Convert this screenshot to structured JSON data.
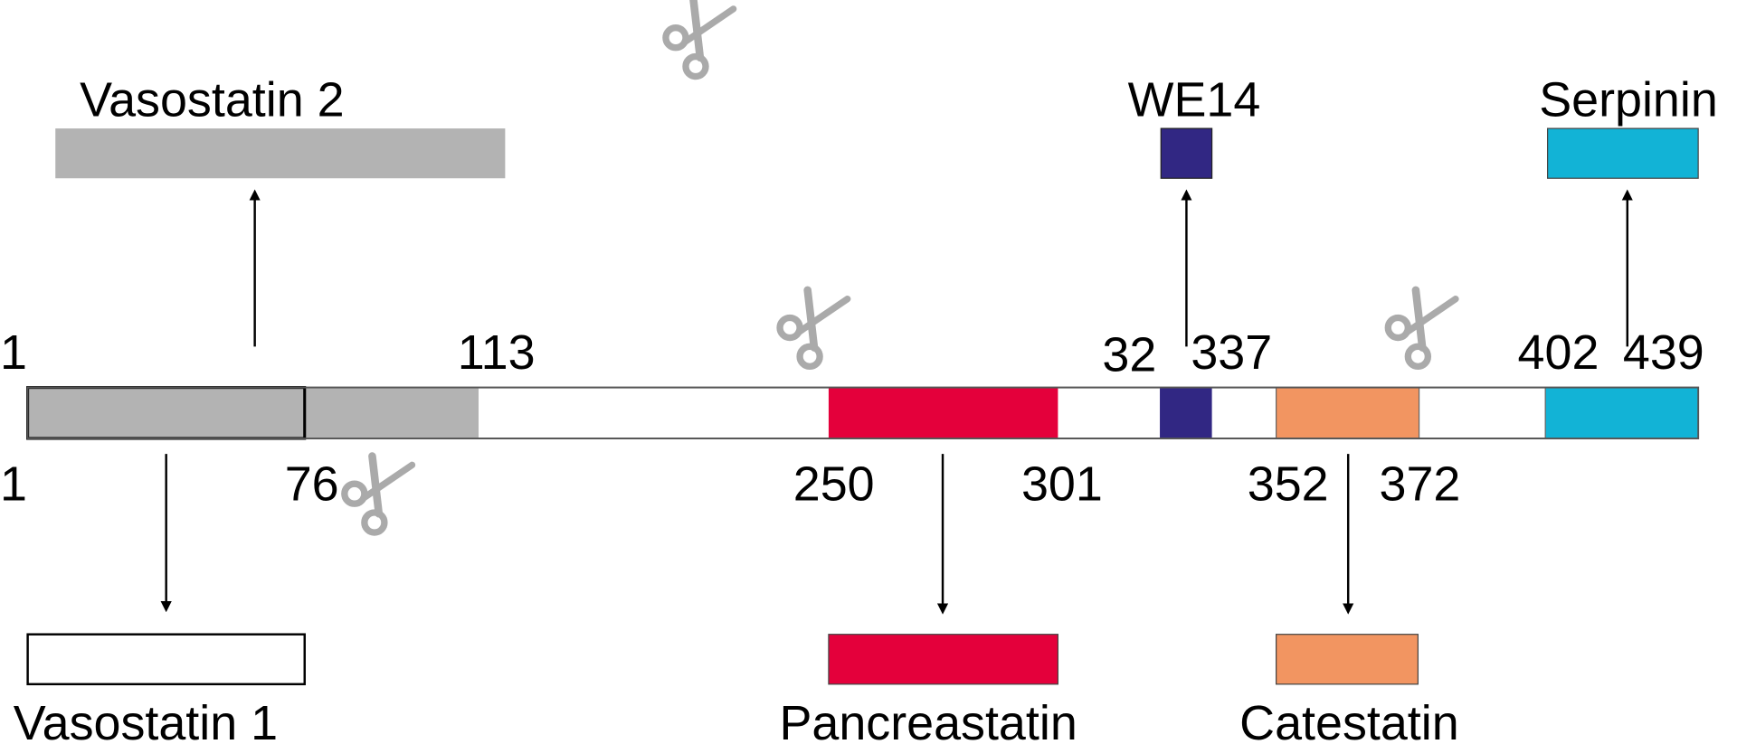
{
  "peptides": [
    {
      "name": "Vasostatin 2"
    },
    {
      "name": "WE14"
    },
    {
      "name": "Serpinin"
    },
    {
      "name": "Vasostatin 1"
    },
    {
      "name": "Pancreastatin"
    },
    {
      "name": "Catestatin"
    }
  ],
  "positions": [
    "1",
    "113",
    "32",
    "337",
    "402",
    "439",
    "1",
    "76",
    "250",
    "301",
    "352",
    "372"
  ]
}
